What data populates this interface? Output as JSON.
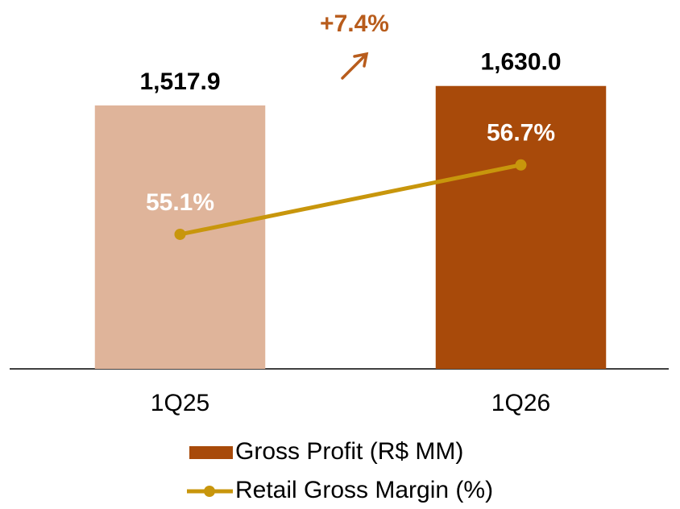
{
  "chart_data": {
    "type": "bar_line",
    "categories": [
      "1Q25",
      "1Q26"
    ],
    "series": [
      {
        "name": "Gross Profit (R$ MM)",
        "type": "bar",
        "color": "#a84a0a",
        "colors": [
          "#dfb49a",
          "#a84a0a"
        ],
        "values": [
          1517.9,
          1630.0
        ],
        "value_labels": [
          "1,517.9",
          "1,630.0"
        ]
      },
      {
        "name": "Retail Gross Margin (%)",
        "type": "line",
        "axis": "y2",
        "color": "#c8960c",
        "values": [
          55.1,
          56.7
        ],
        "value_labels": [
          "55.1%",
          "56.7%"
        ]
      }
    ],
    "annotation": "+7.4%",
    "annotation_color": "#b85c1c",
    "ylim": [
      0,
      2000
    ],
    "y2lim": [
      52,
      60
    ]
  }
}
